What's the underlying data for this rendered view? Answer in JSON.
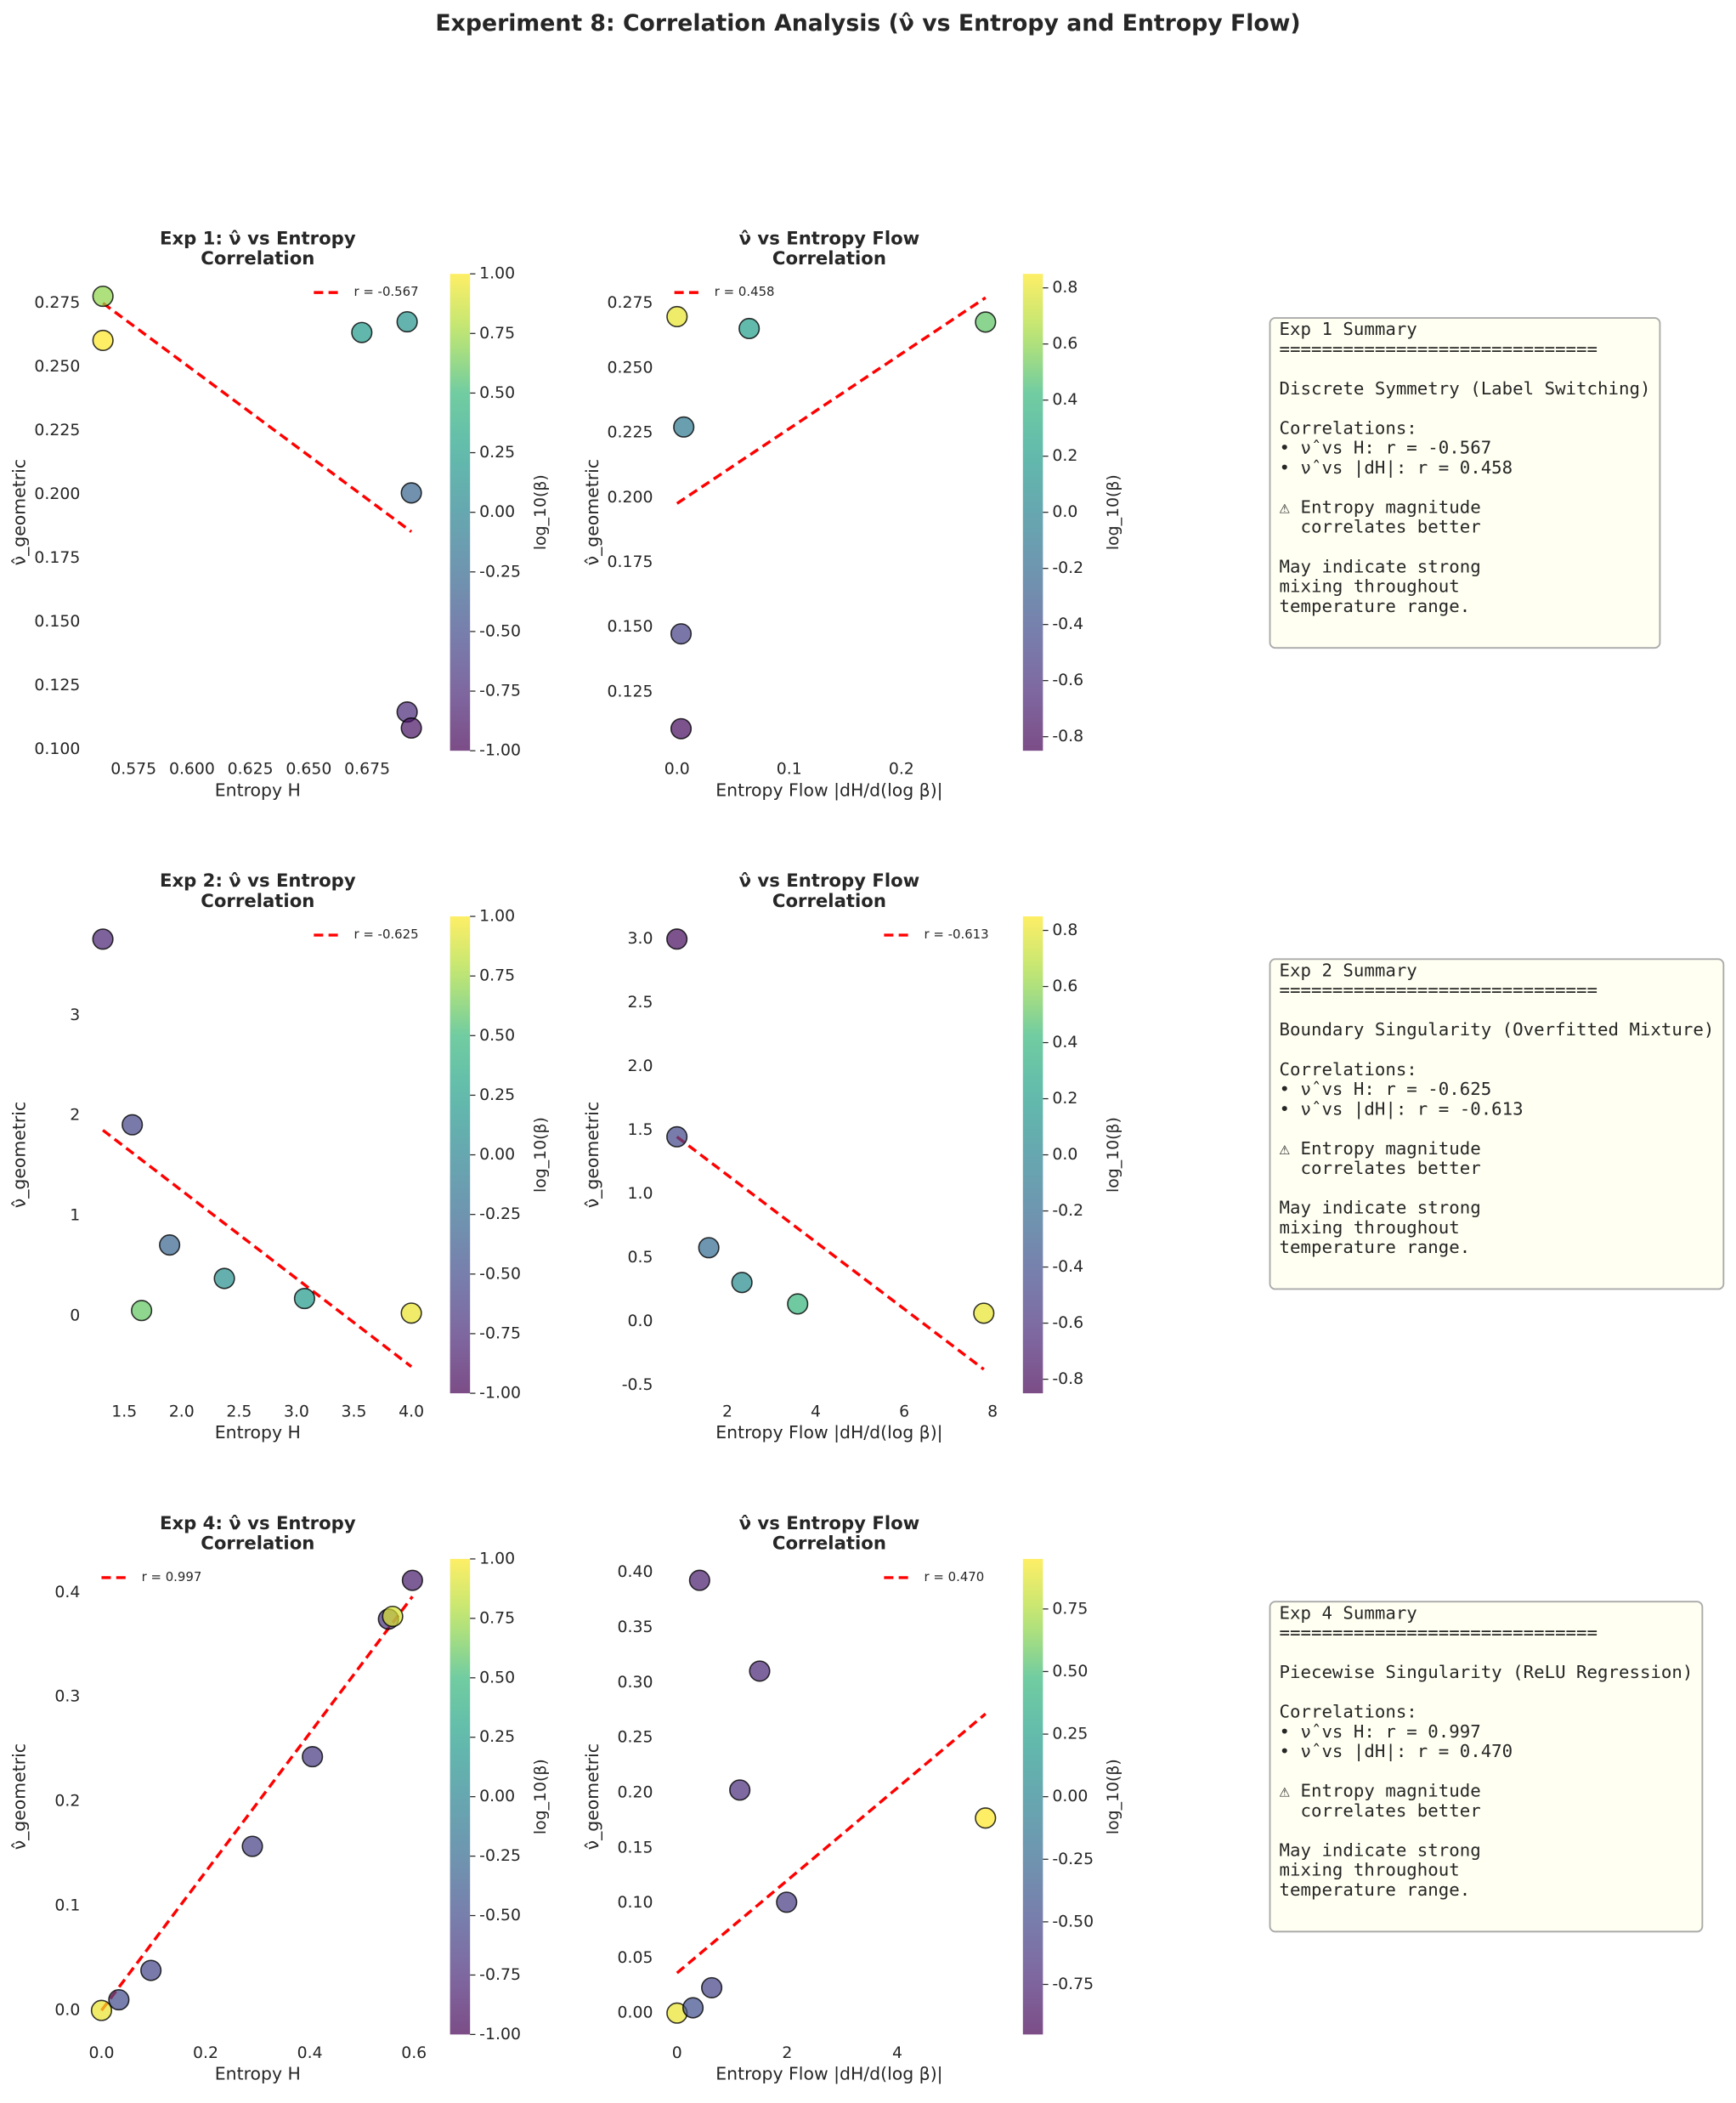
{
  "title": "Experiment 8: Correlation Analysis (ν̂ vs Entropy and Entropy Flow)",
  "chart_data": [
    {
      "type": "scatter",
      "title": [
        "Exp 1: ν̂ vs Entropy",
        "Correlation"
      ],
      "xlabel": "Entropy H",
      "ylabel": "ν̂_geometric",
      "x": [
        0.5619,
        0.5619,
        0.6727,
        0.6921,
        0.6939,
        0.6921,
        0.6939
      ],
      "values": [
        0.2777,
        0.2604,
        0.2635,
        0.2677,
        0.2006,
        0.1147,
        0.1084
      ],
      "colors": [
        0.7,
        1.0,
        0.2,
        0.15,
        -0.3,
        -0.75,
        -0.9
      ],
      "colormap": "viridis",
      "colorbar_label": "log_10(β)",
      "clim": [
        -1,
        1
      ],
      "cticks": [
        {
          "value": -1,
          "label": "-1.00"
        },
        -0.75,
        {
          "value": -0.5,
          "label": "-0.50"
        },
        -0.25,
        {
          "value": 0,
          "label": "0.00"
        },
        0.25,
        {
          "value": 0.5,
          "label": "0.50"
        },
        0.75,
        {
          "value": 1,
          "label": "1.00"
        }
      ],
      "xlim": [
        0.5567,
        0.6996
      ],
      "ylim": [
        0.0995,
        0.2865
      ],
      "xticks": [
        0.575,
        {
          "value": 0.6,
          "label": "0.600"
        },
        0.625,
        {
          "value": 0.65,
          "label": "0.650"
        },
        0.675
      ],
      "yticks": [
        {
          "value": 0.1,
          "label": "0.100"
        },
        0.125,
        {
          "value": 0.15,
          "label": "0.150"
        },
        0.175,
        {
          "value": 0.2,
          "label": "0.200"
        },
        0.225,
        {
          "value": 0.25,
          "label": "0.250"
        },
        0.275
      ],
      "fit": {
        "name": "r = -0.567",
        "color": "#ff0000",
        "x": [
          0.5619,
          0.6939
        ],
        "y": [
          0.275,
          0.1854
        ]
      },
      "legend": "upper right"
    },
    {
      "type": "scatter",
      "title": [
        "ν̂ vs Entropy Flow",
        "Correlation"
      ],
      "xlabel": "Entropy Flow |dH/d(log β)|",
      "ylabel": "ν̂_geometric",
      "x": [
        0,
        0.006,
        0.0643,
        0.275,
        0.0036,
        0.0036
      ],
      "values": [
        0.2698,
        0.2272,
        0.2652,
        0.2677,
        0.1474,
        0.1108
      ],
      "colors": [
        0.8,
        -0.1,
        0.2,
        0.5,
        -0.5,
        -0.8
      ],
      "colormap": "viridis",
      "colorbar_label": "log_10(β)",
      "clim": [
        -0.85,
        0.85
      ],
      "cticks": [
        -0.8,
        -0.6,
        -0.4,
        -0.2,
        {
          "value": 0,
          "label": "0.0"
        },
        0.2,
        0.4,
        0.6,
        0.8
      ],
      "xlim": [
        -0.0119,
        0.2833
      ],
      "ylim": [
        0.1023,
        0.2863
      ],
      "xticks": [
        {
          "value": 0,
          "label": "0.0"
        },
        0.1,
        0.2
      ],
      "yticks": [
        0.125,
        {
          "value": 0.15,
          "label": "0.150"
        },
        0.175,
        {
          "value": 0.2,
          "label": "0.200"
        },
        0.225,
        {
          "value": 0.25,
          "label": "0.250"
        },
        0.275
      ],
      "fit": {
        "name": "r = 0.458",
        "color": "#ff0000",
        "x": [
          0,
          0.275
        ],
        "y": [
          0.1977,
          0.2771
        ]
      },
      "legend": "upper left"
    },
    {
      "type": "scatter",
      "title": [
        "Exp 2: ν̂ vs Entropy",
        "Correlation"
      ],
      "xlabel": "Entropy H",
      "ylabel": "ν̂_geometric",
      "x": [
        1.314,
        1.57,
        1.651,
        1.895,
        2.372,
        3.07,
        4.0
      ],
      "values": [
        3.76,
        1.907,
        0.053,
        0.707,
        0.373,
        0.173,
        0.027
      ],
      "colors": [
        -0.8,
        -0.55,
        0.6,
        -0.3,
        0.1,
        0.2,
        0.95
      ],
      "colormap": "viridis",
      "colorbar_label": "log_10(β)",
      "clim": [
        -1,
        1
      ],
      "cticks": [
        {
          "value": -1,
          "label": "-1.00"
        },
        -0.75,
        {
          "value": -0.5,
          "label": "-0.50"
        },
        -0.25,
        {
          "value": 0,
          "label": "0.00"
        },
        0.25,
        {
          "value": 0.5,
          "label": "0.50"
        },
        0.75,
        {
          "value": 1,
          "label": "1.00"
        }
      ],
      "xlim": [
        1.209,
        4.116
      ],
      "ylim": [
        -0.773,
        3.987
      ],
      "xticks": [
        1.5,
        {
          "value": 2,
          "label": "2.0"
        },
        2.5,
        {
          "value": 3,
          "label": "3.0"
        },
        3.5,
        {
          "value": 4,
          "label": "4.0"
        }
      ],
      "yticks": [
        0,
        1,
        2,
        3
      ],
      "fit": {
        "name": "r = -0.625",
        "color": "#ff0000",
        "x": [
          1.314,
          4.0
        ],
        "y": [
          1.853,
          -0.507
        ]
      },
      "legend": "upper right"
    },
    {
      "type": "scatter",
      "title": [
        "ν̂ vs Entropy Flow",
        "Correlation"
      ],
      "xlabel": "Entropy Flow |dH/d(log β)|",
      "ylabel": "ν̂_geometric",
      "x": [
        0.859,
        0.859,
        1.58,
        2.33,
        3.59,
        7.8
      ],
      "values": [
        3.0,
        1.449,
        0.579,
        0.306,
        0.138,
        0.065
      ],
      "colors": [
        -0.8,
        -0.45,
        -0.2,
        0.05,
        0.4,
        0.8
      ],
      "colormap": "viridis",
      "colorbar_label": "log_10(β)",
      "clim": [
        -0.85,
        0.85
      ],
      "cticks": [
        -0.8,
        -0.6,
        -0.4,
        -0.2,
        {
          "value": 0,
          "label": "0.0"
        },
        0.2,
        0.4,
        0.6,
        0.8
      ],
      "xlim": [
        0.56,
        8.05
      ],
      "ylim": [
        -0.563,
        3.178
      ],
      "xticks": [
        2,
        4,
        6,
        8
      ],
      "yticks": [
        -0.5,
        {
          "value": 0,
          "label": "0.0"
        },
        0.5,
        {
          "value": 1,
          "label": "1.0"
        },
        1.5,
        {
          "value": 2,
          "label": "2.0"
        },
        2.5,
        {
          "value": 3,
          "label": "3.0"
        }
      ],
      "fit": {
        "name": "r = -0.613",
        "color": "#ff0000",
        "x": [
          0.859,
          7.8
        ],
        "y": [
          1.449,
          -0.375
        ]
      },
      "legend": "upper right"
    },
    {
      "type": "scatter",
      "title": [
        "Exp 4: ν̂ vs Entropy",
        "Correlation"
      ],
      "xlabel": "Entropy H",
      "ylabel": "ν̂_geometric",
      "x": [
        0,
        0.0333,
        0.0949,
        0.2897,
        0.405,
        0.551,
        0.559,
        0.597
      ],
      "values": [
        0,
        0.0102,
        0.0383,
        0.157,
        0.2428,
        0.3744,
        0.377,
        0.4115
      ],
      "colors": [
        0.95,
        -0.5,
        -0.55,
        -0.6,
        -0.65,
        -0.7,
        0.9,
        -0.85
      ],
      "colormap": "viridis",
      "colorbar_label": "log_10(β)",
      "clim": [
        -1,
        1
      ],
      "cticks": [
        {
          "value": -1,
          "label": "-1.00"
        },
        -0.75,
        {
          "value": -0.5,
          "label": "-0.50"
        },
        -0.25,
        {
          "value": 0,
          "label": "0.00"
        },
        0.25,
        {
          "value": 0.5,
          "label": "0.50"
        },
        0.75,
        {
          "value": 1,
          "label": "1.00"
        }
      ],
      "xlim": [
        -0.0205,
        0.6205
      ],
      "ylim": [
        -0.023,
        0.432
      ],
      "xticks": [
        {
          "value": 0,
          "label": "0.0"
        },
        0.2,
        0.4,
        0.6
      ],
      "yticks": [
        {
          "value": 0,
          "label": "0.0"
        },
        0.1,
        0.2,
        0.3,
        0.4
      ],
      "fit": {
        "name": "r = 0.997",
        "color": "#ff0000",
        "x": [
          0,
          0.597
        ],
        "y": [
          0,
          0.396
        ]
      },
      "legend": "upper left"
    },
    {
      "type": "scatter",
      "title": [
        "ν̂ vs Entropy Flow",
        "Correlation"
      ],
      "xlabel": "Entropy Flow |dH/d(log β)|",
      "ylabel": "ν̂_geometric",
      "x": [
        0,
        0.29,
        0.63,
        1.99,
        1.14,
        1.5,
        0.41,
        5.6
      ],
      "values": [
        0,
        0.0048,
        0.023,
        0.1006,
        0.2024,
        0.3103,
        0.3927,
        0.177
      ],
      "colors": [
        0.9,
        -0.45,
        -0.55,
        -0.6,
        -0.7,
        -0.75,
        -0.8,
        0.95
      ],
      "colormap": "viridis",
      "colorbar_label": "log_10(β)",
      "clim": [
        -0.95,
        0.95
      ],
      "cticks": [
        -0.75,
        {
          "value": -0.5,
          "label": "-0.50"
        },
        -0.25,
        {
          "value": 0,
          "label": "0.00"
        },
        0.25,
        {
          "value": 0.5,
          "label": "0.50"
        },
        0.75
      ],
      "xlim": [
        -0.242,
        5.77
      ],
      "ylim": [
        -0.0194,
        0.4121
      ],
      "xticks": [
        0,
        2,
        4
      ],
      "yticks": [
        {
          "value": 0,
          "label": "0.00"
        },
        {
          "value": 0.05,
          "label": "0.05"
        },
        {
          "value": 0.1,
          "label": "0.10"
        },
        {
          "value": 0.15,
          "label": "0.15"
        },
        {
          "value": 0.2,
          "label": "0.20"
        },
        {
          "value": 0.25,
          "label": "0.25"
        },
        {
          "value": 0.3,
          "label": "0.30"
        },
        {
          "value": 0.35,
          "label": "0.35"
        },
        {
          "value": 0.4,
          "label": "0.40"
        }
      ],
      "fit": {
        "name": "r = 0.470",
        "color": "#ff0000",
        "x": [
          0,
          5.6
        ],
        "y": [
          0.0364,
          0.2715
        ]
      },
      "legend": "upper right"
    }
  ],
  "summaries": [
    [
      [
        "Exp 1 Summary",
        "=============================="
      ],
      [
        "Discrete Symmetry (Label Switching)"
      ],
      [
        "Correlations:",
        "• ν̂ vs H: r = -0.567",
        "• ν̂ vs |dH|: r = 0.458"
      ],
      [
        "⚠ Entropy magnitude",
        "  correlates better"
      ],
      [
        "May indicate strong",
        "mixing throughout",
        "temperature range."
      ]
    ],
    [
      [
        "Exp 2 Summary",
        "=============================="
      ],
      [
        "Boundary Singularity (Overfitted Mixture)"
      ],
      [
        "Correlations:",
        "• ν̂ vs H: r = -0.625",
        "• ν̂ vs |dH|: r = -0.613"
      ],
      [
        "⚠ Entropy magnitude",
        "  correlates better"
      ],
      [
        "May indicate strong",
        "mixing throughout",
        "temperature range."
      ]
    ],
    [
      [
        "Exp 4 Summary",
        "=============================="
      ],
      [
        "Piecewise Singularity (ReLU Regression)"
      ],
      [
        "Correlations:",
        "• ν̂ vs H: r = 0.997",
        "• ν̂ vs |dH|: r = 0.470"
      ],
      [
        "⚠ Entropy magnitude",
        "  correlates better"
      ],
      [
        "May indicate strong",
        "mixing throughout",
        "temperature range."
      ]
    ]
  ]
}
